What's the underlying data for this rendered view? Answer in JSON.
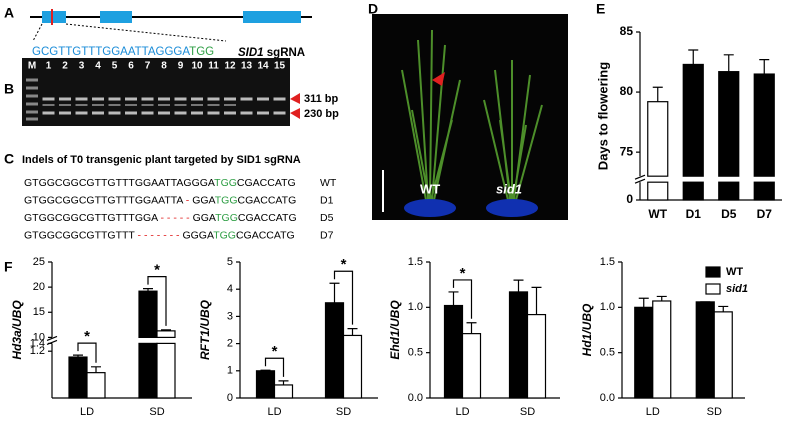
{
  "panel_labels": [
    "A",
    "B",
    "C",
    "D",
    "E",
    "F"
  ],
  "gene": {
    "sgrna_sequence": "GCGTTGTTTGGAATTAGGGA",
    "pam": "TGG",
    "gene_name": "SID1",
    "sgrna_label": "sgRNA"
  },
  "gel": {
    "lanes": [
      "M",
      "1",
      "2",
      "3",
      "4",
      "5",
      "6",
      "7",
      "8",
      "9",
      "10",
      "11",
      "12",
      "13",
      "14",
      "15"
    ],
    "bands": [
      "311 bp",
      "230 bp"
    ]
  },
  "indels": {
    "title": "Indels of T0 transgenic plant targeted by SID1 sgRNA",
    "rows": [
      {
        "segments": [
          {
            "text": "GTGGCGGCGTTGTTTGGAATTAGGGA",
            "color": "#000000"
          },
          {
            "text": "TGG",
            "color": "#2e9e44"
          },
          {
            "text": "CGACCATG",
            "color": "#000000"
          }
        ],
        "label": "WT"
      },
      {
        "segments": [
          {
            "text": "GTGGCGGCGTTGTTTGGAATTA",
            "color": "#000000"
          },
          {
            "text": " - ",
            "color": "#e02020"
          },
          {
            "text": "GGA",
            "color": "#000000"
          },
          {
            "text": "TGG",
            "color": "#2e9e44"
          },
          {
            "text": "CGACCATG",
            "color": "#000000"
          }
        ],
        "label": "D1"
      },
      {
        "segments": [
          {
            "text": "GTGGCGGCGTTGTTTGGA",
            "color": "#000000"
          },
          {
            "text": " - - - - - ",
            "color": "#e02020"
          },
          {
            "text": "GGA",
            "color": "#000000"
          },
          {
            "text": "TGG",
            "color": "#2e9e44"
          },
          {
            "text": "CGACCATG",
            "color": "#000000"
          }
        ],
        "label": "D5"
      },
      {
        "segments": [
          {
            "text": "GTGGCGGCGTTGTTT",
            "color": "#000000"
          },
          {
            "text": " - - - - - - - ",
            "color": "#e02020"
          },
          {
            "text": "GGGA",
            "color": "#000000"
          },
          {
            "text": "TGG",
            "color": "#2e9e44"
          },
          {
            "text": "CGACCATG",
            "color": "#000000"
          }
        ],
        "label": "D7"
      }
    ]
  },
  "photo": {
    "labels": [
      "WT",
      "sid1"
    ]
  },
  "chart_data": [
    {
      "type": "bar",
      "ylabel": "Days to flowering",
      "categories": [
        "WT",
        "D1",
        "D5",
        "D7"
      ],
      "values": [
        79.2,
        82.3,
        81.7,
        81.5
      ],
      "errors": [
        1.2,
        1.2,
        1.4,
        1.2
      ],
      "colors": [
        "#ffffff",
        "#000000",
        "#000000",
        "#000000"
      ],
      "ylim": [
        [
          0,
          1.5
        ],
        [
          73,
          85
        ]
      ],
      "yticks": [
        0,
        75,
        80,
        85
      ]
    },
    {
      "type": "bar",
      "ylabel": "Hd3a/UBQ",
      "categories": [
        "LD",
        "SD"
      ],
      "series": [
        {
          "color": "#000000",
          "values": [
            1.05,
            19.2
          ],
          "errors": [
            0.05,
            0.5
          ]
        },
        {
          "color": "#ffffff",
          "values": [
            0.65,
            11.3
          ],
          "errors": [
            0.15,
            0.2
          ]
        }
      ],
      "stars": [
        "*",
        "*"
      ],
      "ylim": [
        [
          0,
          1.4
        ],
        [
          10,
          25
        ]
      ],
      "yticks": [
        1.2,
        1.4,
        10,
        15,
        20,
        25
      ]
    },
    {
      "type": "bar",
      "ylabel": "RFT1/UBQ",
      "categories": [
        "LD",
        "SD"
      ],
      "series": [
        {
          "color": "#000000",
          "values": [
            1.0,
            3.5
          ],
          "errors": [
            0.02,
            0.72
          ]
        },
        {
          "color": "#ffffff",
          "values": [
            0.48,
            2.3
          ],
          "errors": [
            0.15,
            0.25
          ]
        }
      ],
      "stars": [
        "*",
        "*"
      ],
      "ylim": [
        0,
        5
      ],
      "yticks": [
        0,
        1,
        2,
        3,
        4,
        5
      ]
    },
    {
      "type": "bar",
      "ylabel": "Ehd1/UBQ",
      "categories": [
        "LD",
        "SD"
      ],
      "series": [
        {
          "color": "#000000",
          "values": [
            1.02,
            1.17
          ],
          "errors": [
            0.15,
            0.13
          ]
        },
        {
          "color": "#ffffff",
          "values": [
            0.71,
            0.92
          ],
          "errors": [
            0.12,
            0.3
          ]
        }
      ],
      "stars": [
        "*",
        null
      ],
      "ylim": [
        0,
        1.5
      ],
      "yticks": [
        {
          "value": 0,
          "label": "0.0"
        },
        0.5,
        {
          "value": 1,
          "label": "1.0"
        },
        1.5
      ]
    },
    {
      "type": "bar",
      "ylabel": "Hd1/UBQ",
      "categories": [
        "LD",
        "SD"
      ],
      "series": [
        {
          "name": "WT",
          "color": "#000000",
          "values": [
            1.0,
            1.06
          ],
          "errors": [
            0.1,
            0
          ]
        },
        {
          "name": "sid1",
          "color": "#ffffff",
          "values": [
            1.07,
            0.95
          ],
          "errors": [
            0.05,
            0.06
          ]
        }
      ],
      "legend": true,
      "ylim": [
        0,
        1.5
      ],
      "yticks": [
        {
          "value": 0,
          "label": "0.0"
        },
        0.5,
        {
          "value": 1,
          "label": "1.0"
        },
        1.5
      ]
    }
  ]
}
